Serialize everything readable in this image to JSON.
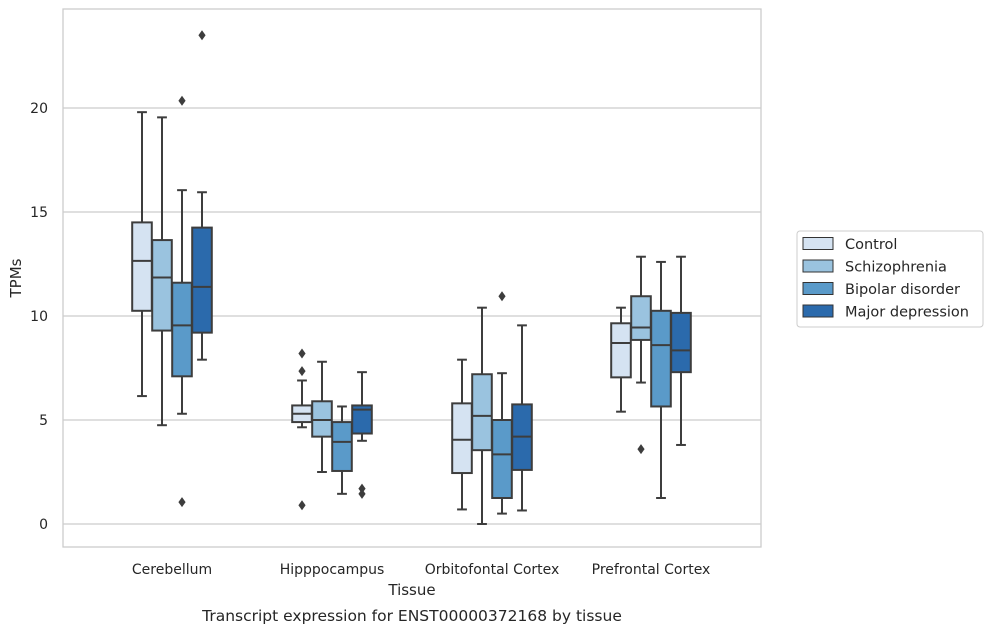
{
  "caption": "Transcript expression for ENST00000372168 by tissue",
  "chart_data": {
    "type": "boxplot",
    "xlabel": "Tissue",
    "ylabel": "TPMs",
    "ylim": [
      -1.1,
      24.6
    ],
    "yticks": [
      0,
      5,
      10,
      15,
      20
    ],
    "grid": true,
    "legend_position": "right",
    "categories": [
      "Cerebellum",
      "Hipppocampus",
      "Orbitofontal Cortex",
      "Prefrontal Cortex"
    ],
    "series": [
      {
        "name": "Control",
        "color": "#d5e3f2",
        "boxes": [
          {
            "whislo": 6.15,
            "q1": 10.25,
            "med": 12.65,
            "q3": 14.5,
            "whishi": 19.8,
            "fliers": []
          },
          {
            "whislo": 4.65,
            "q1": 4.9,
            "med": 5.3,
            "q3": 5.7,
            "whishi": 6.9,
            "fliers": [
              7.35,
              8.2,
              0.9
            ]
          },
          {
            "whislo": 0.7,
            "q1": 2.45,
            "med": 4.05,
            "q3": 5.8,
            "whishi": 7.9,
            "fliers": []
          },
          {
            "whislo": 5.4,
            "q1": 7.05,
            "med": 8.7,
            "q3": 9.65,
            "whishi": 10.4,
            "fliers": []
          }
        ]
      },
      {
        "name": "Schizophrenia",
        "color": "#9ac3df",
        "boxes": [
          {
            "whislo": 4.75,
            "q1": 9.3,
            "med": 11.85,
            "q3": 13.65,
            "whishi": 19.55,
            "fliers": []
          },
          {
            "whislo": 2.5,
            "q1": 4.2,
            "med": 5.0,
            "q3": 5.9,
            "whishi": 7.8,
            "fliers": []
          },
          {
            "whislo": 0.0,
            "q1": 3.55,
            "med": 5.2,
            "q3": 7.2,
            "whishi": 10.4,
            "fliers": []
          },
          {
            "whislo": 6.8,
            "q1": 8.85,
            "med": 9.45,
            "q3": 10.95,
            "whishi": 12.85,
            "fliers": [
              3.6
            ]
          }
        ]
      },
      {
        "name": "Bipolar disorder",
        "color": "#5a9ac9",
        "boxes": [
          {
            "whislo": 5.3,
            "q1": 7.1,
            "med": 9.55,
            "q3": 11.6,
            "whishi": 16.05,
            "fliers": [
              20.35,
              1.05
            ]
          },
          {
            "whislo": 1.45,
            "q1": 2.55,
            "med": 3.95,
            "q3": 4.9,
            "whishi": 5.65,
            "fliers": []
          },
          {
            "whislo": 0.5,
            "q1": 1.25,
            "med": 3.35,
            "q3": 5.0,
            "whishi": 7.25,
            "fliers": [
              10.95
            ]
          },
          {
            "whislo": 1.25,
            "q1": 5.65,
            "med": 8.6,
            "q3": 10.25,
            "whishi": 12.6,
            "fliers": []
          }
        ]
      },
      {
        "name": "Major depression",
        "color": "#2b6aac",
        "boxes": [
          {
            "whislo": 7.9,
            "q1": 9.2,
            "med": 11.4,
            "q3": 14.25,
            "whishi": 15.95,
            "fliers": [
              23.5
            ]
          },
          {
            "whislo": 4.0,
            "q1": 4.35,
            "med": 5.5,
            "q3": 5.7,
            "whishi": 7.3,
            "fliers": [
              1.45,
              1.7
            ]
          },
          {
            "whislo": 0.65,
            "q1": 2.6,
            "med": 4.2,
            "q3": 5.75,
            "whishi": 9.55,
            "fliers": []
          },
          {
            "whislo": 3.8,
            "q1": 7.3,
            "med": 8.35,
            "q3": 10.15,
            "whishi": 12.85,
            "fliers": []
          }
        ]
      }
    ]
  }
}
